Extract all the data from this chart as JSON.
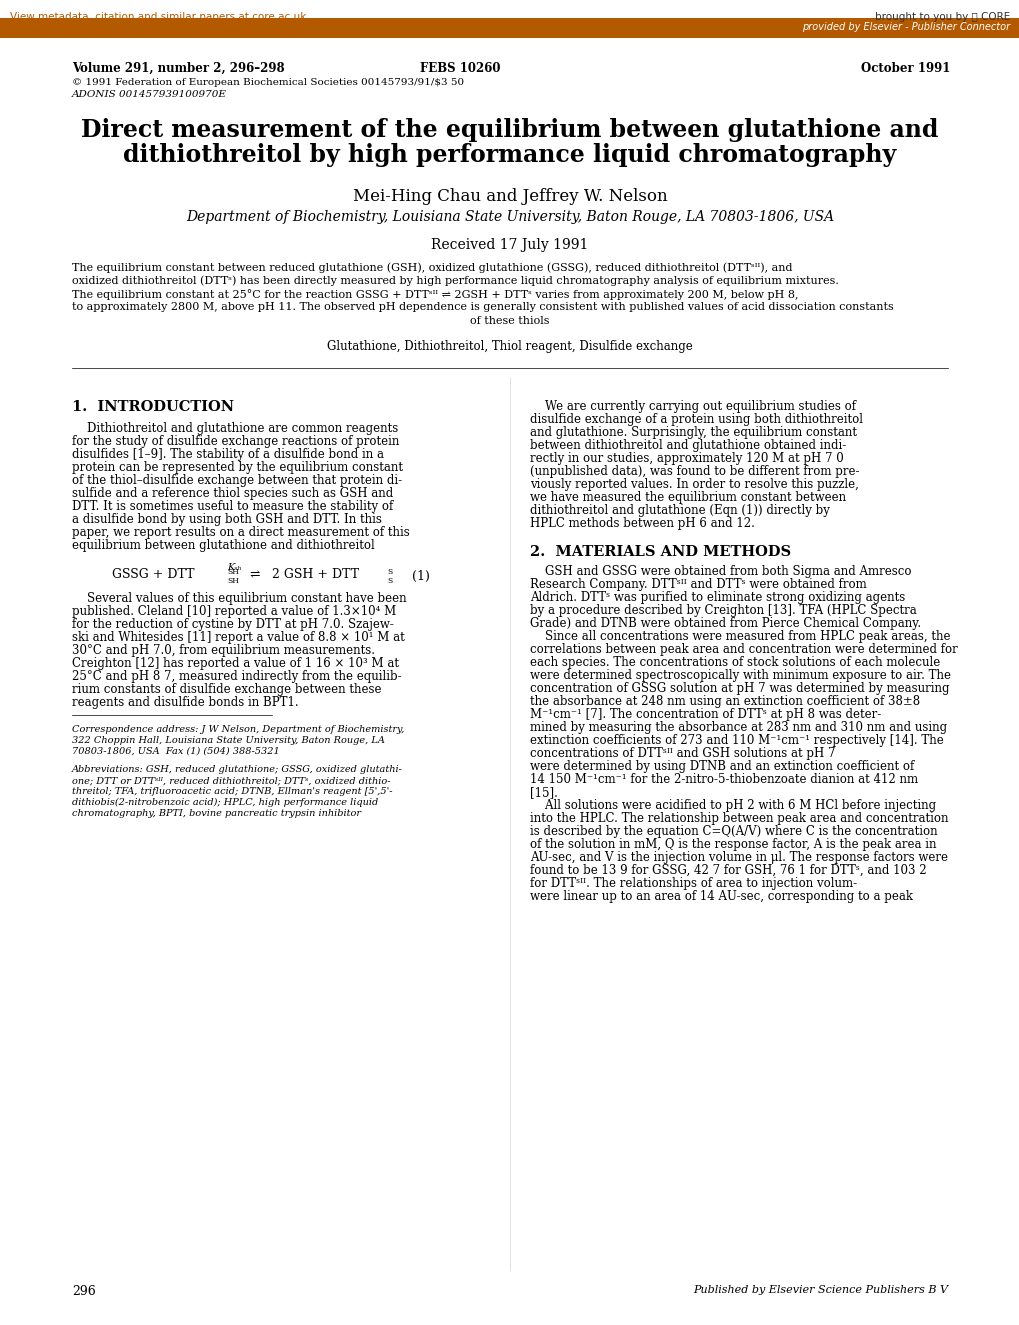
{
  "bg_color": "#ffffff",
  "top_bar_color": "#b35900",
  "top_link_color": "#b35900",
  "top_link_text": "View metadata, citation and similar papers at core.ac.uk",
  "core_text": "brought to you by Ⓢ CORE",
  "elsevier_text": "provided by Elsevier - Publisher Connector",
  "volume_line": "Volume 291, number 2, 296–298",
  "febs_line": "FEBS 10260",
  "date_line": "October 1991",
  "copyright_line": "© 1991 Federation of European Biochemical Societies 00145793/91/$3 50",
  "adonis_line": "ADONIS 001457939100970E",
  "title_line1": "Direct measurement of the equilibrium between glutathione and",
  "title_line2": "dithiothreitol by high performance liquid chromatography",
  "authors": "Mei-Hing Chau and Jeffrey W. Nelson",
  "affiliation": "Department of Biochemistry, Louisiana State University, Baton Rouge, LA 70803-1806, USA",
  "received": "Received 17 July 1991",
  "abstract": "The equilibrium constant between reduced glutathione (GSH), oxidized glutathione (GSSG), reduced dithiothreitol (DTTˢₕᴵᴵ), and\noxidized dithiothreitol (DTTˢ) has been directly measured by high performance liquid chromatography analysis of equilibrium mixtures.\nThe equilibrium constant at 25°C for the reaction GSSG + DTTˢₕᴵᴵ ⇌ 2GSH + DTTˢ varies from approximately 200 M, below pH 8,\nto approximately 2800 M, above pH 11. The observed pH dependence is generally consistent with published values of acid dissociation constants\nof these thiols",
  "keywords": "Glutathione, Dithiothreitol, Thiol reagent, Disulfide exchange",
  "intro_title": "1.  INTRODUCTION",
  "intro_text_col1": "    Dithiothreitol and glutathione are common reagents for the study of disulfide exchange reactions of protein disulfides [1–9]. The stability of a disulfide bond in a protein can be represented by the equilibrium constant of the thiol–disulfide exchange between that protein disulfide and a reference thiol species such as GSH and DTT. It is sometimes useful to measure the stability of a disulfide bond by using both GSH and DTT. In this paper, we report results on a direct measurement of this equilibrium between glutathione and dithiothreitol",
  "equation_text": "GSSG + DTT  ⇌  2GSH + DTT",
  "equation_label": "(1)",
  "intro_text_col1b": "    Several values of this equilibrium constant have been published. Cleland [10] reported a value of 1.3×10⁴ M for the reduction of cystine by DTT at pH 7.0. Szajewski and Whitesides [11] report a value of 8.8 × 10¹ M at 30°C and pH 7.0, from equilibrium measurements. Creighton [12] has reported a value of 1 16 × 10³ M at 25°C and pH 8 7, measured indirectly from the equilibrium constants of disulfide exchange between these reagents and disulfide bonds in BPT1.",
  "footnote_corr": "Correspondence address: J W Nelson, Department of Biochemistry, 322 Choppin Hall, Louisiana State University, Baton Rouge, LA 70803-1806, USA  Fax (1) (504) 388-5321",
  "footnote_abbr": "Abbreviations: GSH, reduced glutathione; GSSG, oxidized glutathione; DTT or DTTˢᴵᴵ, reduced dithiothreitol; DTTˢ, oxidized dithiothreitol; TFA, trifluoroacetic acid; DTNB, Ellman's reagent [5',5'-dithiobis(2-nitrobenzoic acid); HPLC, high performance liquid chromatography, BPTI, bovine pancreatic trypsin inhibitor",
  "page_number": "296",
  "pub_note": "Published by Elsevier Science Publishers B V",
  "col2_intro": "    We are currently carrying out equilibrium studies of disulfide exchange of a protein using both dithiothreitol and glutathione. Surprisingly, the equilibrium constant between dithiothreitol and glutathione obtained indirectly in our studies, approximately 120 M at pH 7 0 (unpublished data), was found to be different from previously reported values. In order to resolve this puzzle, we have measured the equilibrium constant between dithiothreitol and glutathione (Eqn (1)) directly by HPLC methods between pH 6 and 12.",
  "materials_title": "2.  MATERIALS AND METHODS",
  "materials_text": "    GSH and GSSG were obtained from both Sigma and Amresco Research Company. DTTˢᴵᴵ and DTTˢ were obtained from Aldrich. DTTˢ was purified to eliminate strong oxidizing agents by a procedure described by Creighton [13]. TFA (HPLC Spectra Grade) and DTNB were obtained from Pierce Chemical Company.\n    Since all concentrations were measured from HPLC peak areas, the correlations between peak area and concentration were determined for each species. The concentrations of stock solutions of each molecule were determined spectroscopically with minimum exposure to air. The concentration of GSSG solution at pH 7 was determined by measuring the absorbance at 248 nm using an extinction coefficient of 38±8 M⁻¹cm⁻¹ [7]. The concentration of DTTˢ at pH 8 was determined by measuring the absorbance at 283 nm and 310 nm and using extinction coefficients of 273 and 110 M⁻¹cm⁻¹ respectively [14]. The concentrations of DTTˢᴵᴵ and GSH solutions at pH 7 were determined by using DTNB and an extinction coefficient of 14 150 M⁻¹cm⁻¹ for the 2-nitro-5-thiobenzoate dianion at 412 nm [15].\n    All solutions were acidified to pH 2 with 6 M HCl before injecting into the HPLC. The relationship between peak area and concentration is described by the equation C=Q(A/V) where C is the concentration of the solution in mM, Q is the response factor, A is the peak area in AU-sec, and V is the injection volume in μl. The response factors were found to be 13 9 for GSSG, 42 7 for GSH, 76 1 for DTTˢ, and 103 2 for DTTˢᴵᴵ. The relationships of area to injection volume were linear up to an area of 14 AU-sec, corresponding to a peak"
}
